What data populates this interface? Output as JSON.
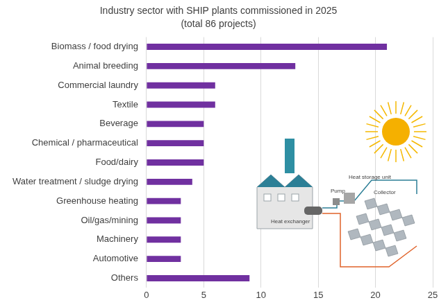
{
  "chart_data": {
    "type": "bar",
    "orientation": "horizontal",
    "title": "Industry sector with SHIP plants commissioned in 2025",
    "subtitle": "(total 86 projects)",
    "categories": [
      "Biomass / food drying",
      "Animal breeding",
      "Commercial laundry",
      "Textile",
      "Beverage",
      "Chemical / pharmaceutical",
      "Food/dairy",
      "Water treatment / sludge drying",
      "Greenhouse heating",
      "Oil/gas/mining",
      "Machinery",
      "Automotive",
      "Others"
    ],
    "values": [
      21,
      13,
      6,
      6,
      5,
      5,
      5,
      4,
      3,
      3,
      3,
      3,
      9
    ],
    "color": "#7030a0",
    "xlim": [
      0,
      25
    ],
    "xticks": [
      0,
      5,
      10,
      15,
      20,
      25
    ],
    "grid": true,
    "annotations": [
      "Heat storage unit",
      "Pump",
      "Collector",
      "Heat exchanger"
    ]
  }
}
